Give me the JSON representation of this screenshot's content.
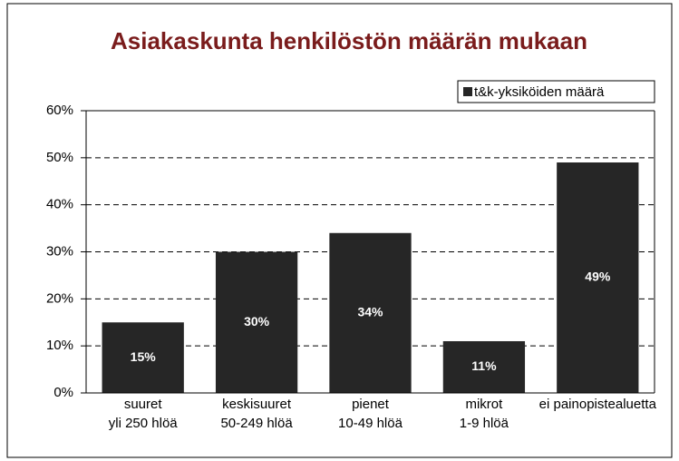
{
  "chart_data": {
    "type": "bar",
    "title": "Asiakaskunta henkilöstön määrän mukaan",
    "categories": [
      [
        "suuret",
        "yli 250 hlöä"
      ],
      [
        "keskisuuret",
        "50-249 hlöä"
      ],
      [
        "pienet",
        "10-49 hlöä"
      ],
      [
        "mikrot",
        "1-9 hlöä"
      ],
      [
        "ei painopistealuetta"
      ]
    ],
    "series": [
      {
        "name": "t&k-yksiköiden määrä",
        "color": "#262626",
        "values": [
          15,
          30,
          34,
          11,
          49
        ],
        "value_labels": [
          "15%",
          "30%",
          "34%",
          "11%",
          "49%"
        ]
      }
    ],
    "ylim": [
      0,
      60
    ],
    "yticks": [
      {
        "value": 0,
        "label": "0%"
      },
      {
        "value": 10,
        "label": "10%"
      },
      {
        "value": 20,
        "label": "20%"
      },
      {
        "value": 30,
        "label": "30%"
      },
      {
        "value": 40,
        "label": "40%"
      },
      {
        "value": 50,
        "label": "50%"
      },
      {
        "value": 60,
        "label": "60%"
      }
    ],
    "grid": true,
    "legend": "top-right"
  }
}
